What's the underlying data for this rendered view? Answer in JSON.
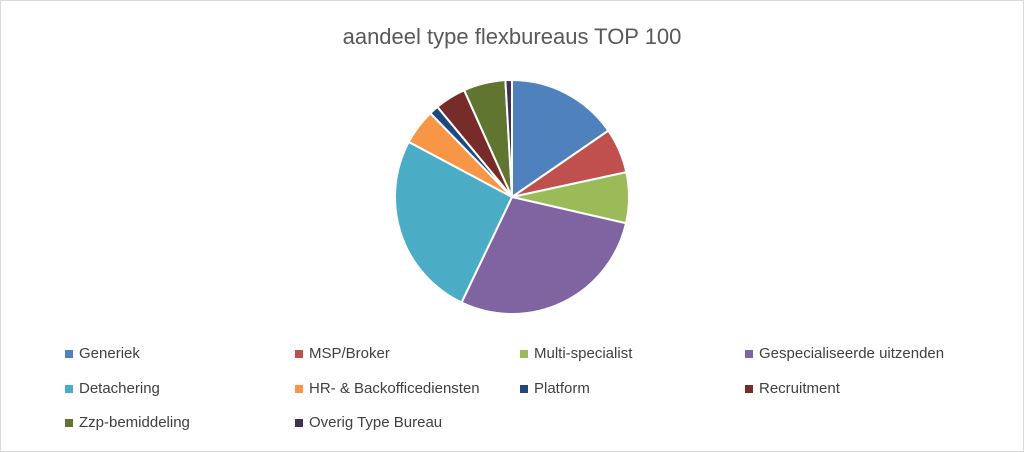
{
  "chart_data": {
    "type": "pie",
    "title": "aandeel type flexbureaus TOP 100",
    "categories": [
      "Generiek",
      "MSP/Broker",
      "Multi-specialist",
      "Gespecialiseerde uitzenden",
      "Detachering",
      "HR- & Backofficediensten",
      "Platform",
      "Recruitment",
      "Zzp-bemiddeling",
      "Overig Type Bureau"
    ],
    "values": [
      15.4,
      6.2,
      7.0,
      28.5,
      25.7,
      4.9,
      1.3,
      4.3,
      5.8,
      0.9
    ],
    "colors": [
      "#4f81bd",
      "#c0504d",
      "#9bbb59",
      "#8064a2",
      "#4bacc6",
      "#f79646",
      "#1f497d",
      "#772c2a",
      "#5f7530",
      "#3f3151"
    ],
    "legend": "bottom"
  }
}
